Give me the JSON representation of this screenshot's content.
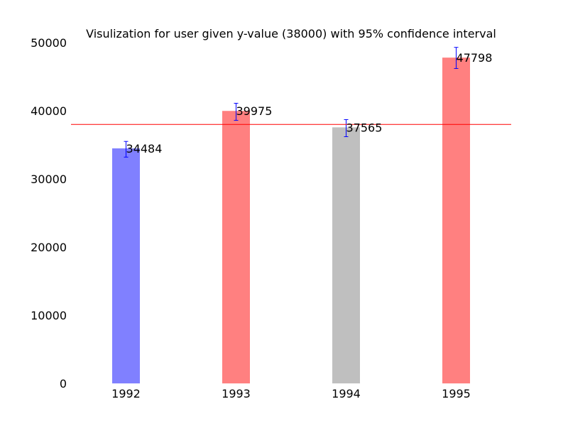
{
  "chart_data": {
    "type": "bar",
    "title": "Visulization for user given y-value (38000) with 95% confidence interval",
    "xlabel": "",
    "ylabel": "",
    "categories": [
      "1992",
      "1993",
      "1994",
      "1995"
    ],
    "values": [
      34484,
      39975,
      37565,
      47798
    ],
    "value_labels": [
      "34484",
      "39975",
      "37565",
      "47798"
    ],
    "error_bars": [
      {
        "low": 33200,
        "high": 35500
      },
      {
        "low": 38600,
        "high": 41100
      },
      {
        "low": 36200,
        "high": 38700
      },
      {
        "low": 46200,
        "high": 49300
      }
    ],
    "bar_colors": [
      "#8080ff",
      "#ff8080",
      "#bfbfbf",
      "#ff8080"
    ],
    "error_bar_color": "#0000ff",
    "reference_line": {
      "value": 38000,
      "color": "#ff0000"
    },
    "ylim": [
      0,
      50000
    ],
    "yticks": [
      0,
      10000,
      20000,
      30000,
      40000,
      50000
    ],
    "ytick_labels": [
      "0",
      "10000",
      "20000",
      "30000",
      "40000",
      "50000"
    ],
    "grid": false
  }
}
